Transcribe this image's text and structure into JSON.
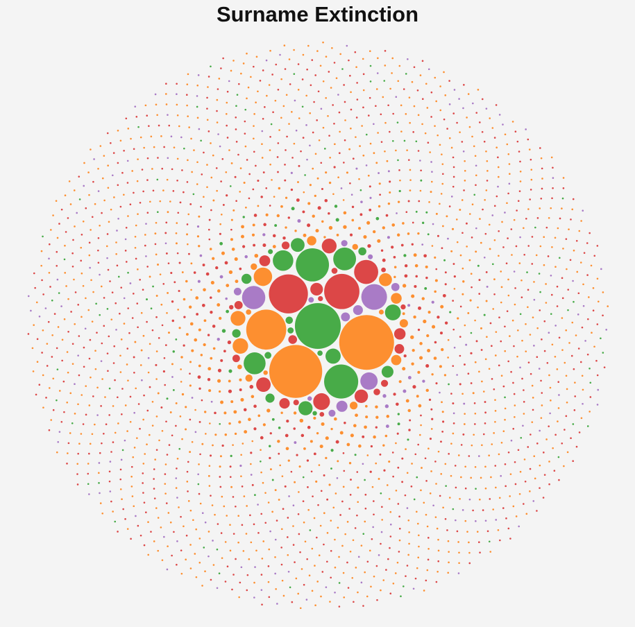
{
  "chart_data": {
    "type": "bubble-pack",
    "title": "Surname Extinction",
    "category_colors": {
      "orange": "#fd8f30",
      "green": "#48ab48",
      "red": "#dc4747",
      "purple": "#a97bc6"
    },
    "major_bubbles": [
      {
        "category": "green",
        "value": 1050
      },
      {
        "category": "orange",
        "value": 1500
      },
      {
        "category": "orange",
        "value": 1400
      },
      {
        "category": "red",
        "value": 760
      },
      {
        "category": "red",
        "value": 620
      },
      {
        "category": "orange",
        "value": 800
      },
      {
        "category": "green",
        "value": 580
      },
      {
        "category": "green",
        "value": 550
      },
      {
        "category": "purple",
        "value": 330
      },
      {
        "category": "purple",
        "value": 270
      },
      {
        "category": "green",
        "value": 260
      },
      {
        "category": "red",
        "value": 290
      },
      {
        "category": "green",
        "value": 240
      },
      {
        "category": "green",
        "value": 210
      },
      {
        "category": "orange",
        "value": 170
      },
      {
        "category": "purple",
        "value": 150
      },
      {
        "category": "red",
        "value": 140
      },
      {
        "category": "green",
        "value": 125
      },
      {
        "category": "orange",
        "value": 120
      },
      {
        "category": "green",
        "value": 115
      },
      {
        "category": "orange",
        "value": 110
      },
      {
        "category": "red",
        "value": 110
      },
      {
        "category": "red",
        "value": 105
      },
      {
        "category": "green",
        "value": 100
      },
      {
        "category": "green",
        "value": 95
      },
      {
        "category": "red",
        "value": 90
      },
      {
        "category": "orange",
        "value": 85
      },
      {
        "category": "red",
        "value": 80
      },
      {
        "category": "green",
        "value": 70
      },
      {
        "category": "red",
        "value": 65
      },
      {
        "category": "purple",
        "value": 62
      },
      {
        "category": "red",
        "value": 60
      },
      {
        "category": "orange",
        "value": 58
      },
      {
        "category": "red",
        "value": 55
      },
      {
        "category": "orange",
        "value": 52
      },
      {
        "category": "green",
        "value": 50
      },
      {
        "category": "purple",
        "value": 48
      },
      {
        "category": "red",
        "value": 46
      },
      {
        "category": "orange",
        "value": 44
      },
      {
        "category": "green",
        "value": 42
      },
      {
        "category": "purple",
        "value": 40
      },
      {
        "category": "red",
        "value": 38
      },
      {
        "category": "green",
        "value": 36
      },
      {
        "category": "orange",
        "value": 35
      },
      {
        "category": "red",
        "value": 34
      },
      {
        "category": "purple",
        "value": 33
      },
      {
        "category": "green",
        "value": 32
      },
      {
        "category": "red",
        "value": 31
      },
      {
        "category": "orange",
        "value": 30
      },
      {
        "category": "purple",
        "value": 29
      },
      {
        "category": "red",
        "value": 28
      },
      {
        "category": "green",
        "value": 27
      },
      {
        "category": "orange",
        "value": 26
      },
      {
        "category": "red",
        "value": 25
      },
      {
        "category": "purple",
        "value": 24
      },
      {
        "category": "green",
        "value": 23
      },
      {
        "category": "red",
        "value": 22
      },
      {
        "category": "orange",
        "value": 21
      },
      {
        "category": "purple",
        "value": 20
      },
      {
        "category": "green",
        "value": 19
      },
      {
        "category": "red",
        "value": 18
      },
      {
        "category": "orange",
        "value": 17
      },
      {
        "category": "red",
        "value": 16
      },
      {
        "category": "purple",
        "value": 15
      },
      {
        "category": "green",
        "value": 14
      },
      {
        "category": "orange",
        "value": 14
      },
      {
        "category": "red",
        "value": 13
      },
      {
        "category": "red",
        "value": 13
      },
      {
        "category": "orange",
        "value": 12
      },
      {
        "category": "purple",
        "value": 12
      },
      {
        "category": "green",
        "value": 12
      },
      {
        "category": "red",
        "value": 11
      },
      {
        "category": "orange",
        "value": 11
      },
      {
        "category": "red",
        "value": 11
      },
      {
        "category": "purple",
        "value": 10
      },
      {
        "category": "green",
        "value": 10
      },
      {
        "category": "orange",
        "value": 10
      },
      {
        "category": "red",
        "value": 10
      }
    ],
    "small_bubbles": {
      "count": 2400,
      "category_mix": {
        "orange": 0.45,
        "red": 0.38,
        "purple": 0.1,
        "green": 0.07
      },
      "value_range": [
        1,
        9
      ]
    }
  }
}
